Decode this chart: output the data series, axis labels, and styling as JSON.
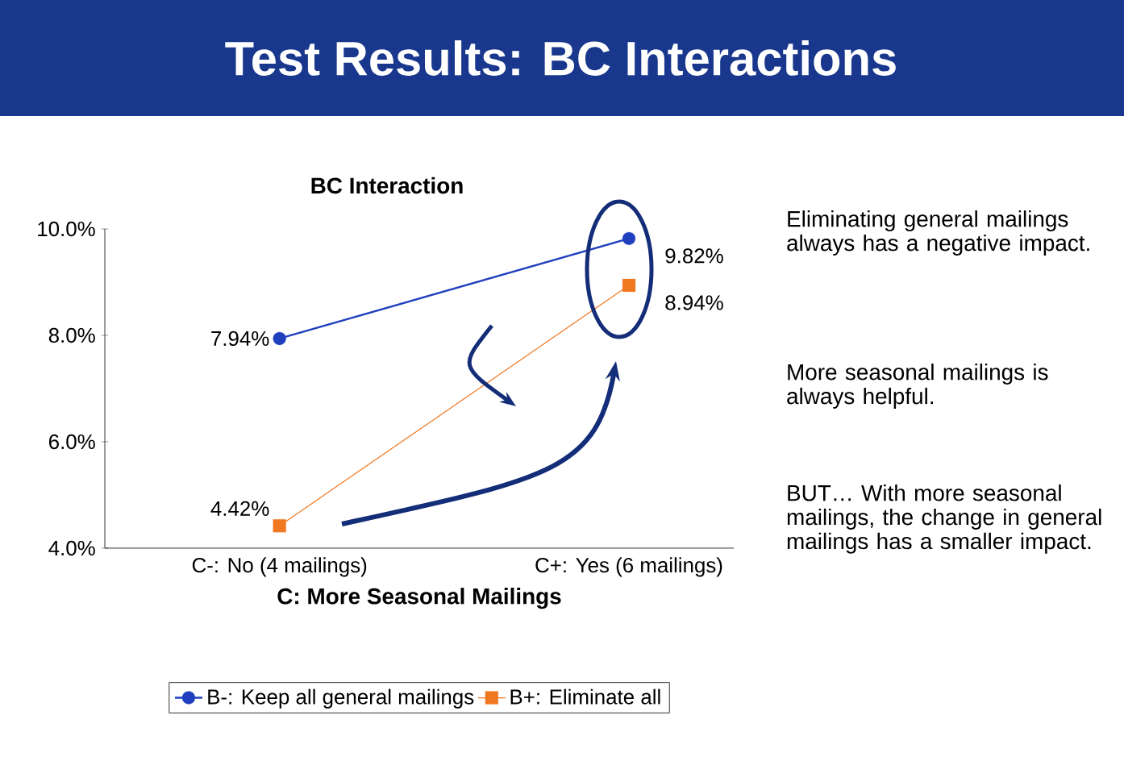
{
  "chart_data": {
    "type": "line",
    "title": "Test Results: BC Interactions",
    "subtitle": "BC Interaction",
    "categories": [
      "C-: No (4 mailings)",
      "C+: Yes (6 mailings)"
    ],
    "xlabel": "C: More Seasonal  Mailings",
    "series": [
      {
        "name": "B-: Keep all general mailings",
        "color": "#1f3fbf",
        "marker": "circle",
        "values": [
          7.94,
          9.82
        ],
        "value_labels": [
          "7.94%",
          "9.82%"
        ]
      },
      {
        "name": "B+: Eliminate all",
        "color": "#f07820",
        "marker": "square",
        "values": [
          4.42,
          8.94
        ],
        "value_labels": [
          "4.42%",
          "8.94%"
        ]
      }
    ],
    "ylim": [
      4,
      10
    ],
    "yticks": [
      {
        "value": 4,
        "label": "4.0%"
      },
      {
        "value": 6,
        "label": "6.0%"
      },
      {
        "value": 8,
        "label": "8.0%"
      },
      {
        "value": 10,
        "label": "10.0%"
      }
    ],
    "grid": false,
    "legend": "bottom",
    "annotations": [
      "Eliminating general mailings always has a negative impact.",
      "More seasonal mailings is always helpful.",
      "BUT… With more seasonal mailings, the change in general mailings has a smaller impact."
    ]
  }
}
